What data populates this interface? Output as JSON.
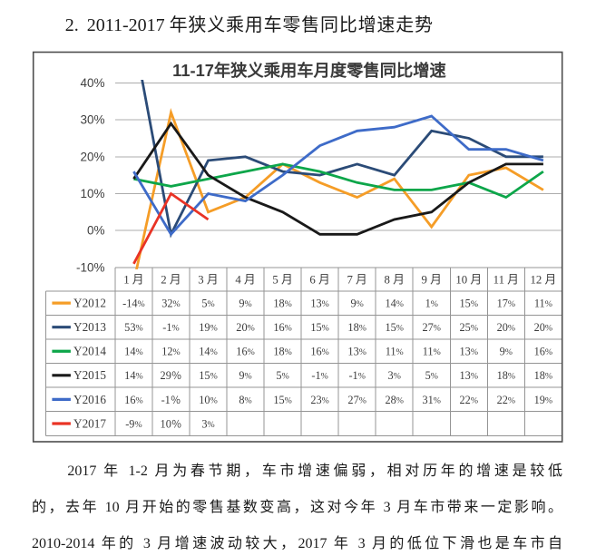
{
  "document": {
    "heading": {
      "number": "2.",
      "years": "2011-2017",
      "title": "年狭义乘用车零售同比增速走势"
    },
    "paragraph_lines": [
      "2017 年 1-2 月为春节期，车市增速偏弱，相对历年的增速是较低",
      "的，去年 10 月开始的零售基数变高，这对今年 3 月车市带来一定影响。",
      "2010-2014 年的 3 月增速波动较大，2017 年 3 月的低位下滑也是车市自"
    ]
  },
  "chart_data": {
    "type": "line",
    "title": "11-17年狭义乘用车月度零售同比增速",
    "categories": [
      "1 月",
      "2 月",
      "3 月",
      "4 月",
      "5 月",
      "6 月",
      "7 月",
      "8 月",
      "9 月",
      "10 月",
      "11 月",
      "12 月"
    ],
    "xlabel": "",
    "ylabel": "",
    "ylim": [
      -10,
      40
    ],
    "y_axis": {
      "labels": [
        "40%",
        "30%",
        "20%",
        "10%",
        "0%",
        "-10%"
      ],
      "max": 40,
      "min": -10,
      "step": 10,
      "unit": "%"
    },
    "grid": true,
    "legend_position": "table-left",
    "series": [
      {
        "name": "Y2012",
        "color": "#F59D27",
        "values": [
          -14,
          32,
          5,
          9,
          18,
          13,
          9,
          14,
          1,
          15,
          17,
          11
        ],
        "labels": [
          "-14%",
          "32%",
          "5%",
          "9%",
          "18%",
          "13%",
          "9%",
          "14%",
          "1%",
          "15%",
          "17%",
          "11%"
        ]
      },
      {
        "name": "Y2013",
        "color": "#2B4B77",
        "values": [
          53,
          -1,
          19,
          20,
          16,
          15,
          18,
          15,
          27,
          25,
          20,
          20
        ],
        "labels": [
          "53%",
          "-1%",
          "19%",
          "20%",
          "16%",
          "15%",
          "18%",
          "15%",
          "27%",
          "25%",
          "20%",
          "20%"
        ]
      },
      {
        "name": "Y2014",
        "color": "#0DA64A",
        "values": [
          14,
          12,
          14,
          16,
          18,
          16,
          13,
          11,
          11,
          13,
          9,
          16
        ],
        "labels": [
          "14%",
          "12%",
          "14%",
          "16%",
          "18%",
          "16%",
          "13%",
          "11%",
          "11%",
          "13%",
          "9%",
          "16%"
        ]
      },
      {
        "name": "Y2015",
        "color": "#191919",
        "values": [
          14,
          29,
          15,
          9,
          5,
          -1,
          -1,
          3,
          5,
          13,
          18,
          18
        ],
        "labels": [
          "14%",
          "29％",
          "15%",
          "9%",
          "5%",
          "-1%",
          "-1%",
          "3%",
          "5%",
          "13%",
          "18%",
          "18%"
        ]
      },
      {
        "name": "Y2016",
        "color": "#3E6BC8",
        "values": [
          16,
          -1,
          10,
          8,
          15,
          23,
          27,
          28,
          31,
          22,
          22,
          19
        ],
        "labels": [
          "16%",
          "-1％",
          "10%",
          "8%",
          "15%",
          "23%",
          "27%",
          "28%",
          "31%",
          "22%",
          "22%",
          "19%"
        ]
      },
      {
        "name": "Y2017",
        "color": "#E93325",
        "values": [
          -9,
          10,
          3
        ],
        "labels": [
          "-9%",
          "10％",
          "3%"
        ]
      }
    ]
  },
  "colors": {
    "background": "#FFFFFF",
    "frame_border": "#4D4D4D",
    "gridline": "#ACACAC",
    "table_border": "#949494",
    "body_text": "#1A1A1A",
    "table_text": "#3C3C3C",
    "axis_text": "#3F3F3F",
    "title_text": "#3A3A3A"
  }
}
